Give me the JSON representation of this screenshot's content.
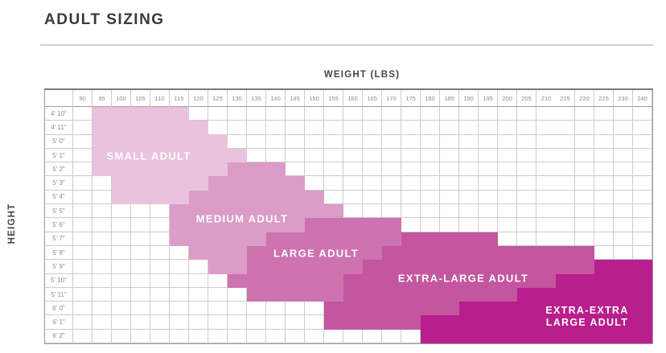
{
  "page_title": "ADULT SIZING",
  "axes": {
    "x_label": "WEIGHT (LBS)",
    "y_label": "HEIGHT"
  },
  "chart_data": {
    "type": "heatmap",
    "title": "ADULT SIZING",
    "xlabel": "WEIGHT (LBS)",
    "ylabel": "HEIGHT",
    "grid": true,
    "legend_position": "labels-inside-regions",
    "weights": [
      90,
      95,
      100,
      105,
      110,
      115,
      120,
      125,
      130,
      135,
      140,
      145,
      150,
      155,
      160,
      165,
      170,
      175,
      180,
      185,
      190,
      195,
      200,
      205,
      210,
      215,
      220,
      225,
      230,
      240
    ],
    "heights": [
      "4' 10\"",
      "4' 11\"",
      "5' 0\"",
      "5' 1\"",
      "5' 2\"",
      "5' 3\"",
      "5' 4\"",
      "5' 5\"",
      "5' 6\"",
      "5' 7\"",
      "5' 8\"",
      "5' 9\"",
      "5' 10\"",
      "5' 11\"",
      "6' 0\"",
      "6' 1\"",
      "6' 2\""
    ],
    "regions": [
      {
        "id": "small-adult",
        "label": "SMALL ADULT",
        "color": "#eac2dd",
        "spans": [
          [
            "4' 10\"",
            95,
            115
          ],
          [
            "4' 11\"",
            95,
            120
          ],
          [
            "5' 0\"",
            95,
            125
          ],
          [
            "5' 1\"",
            95,
            130
          ],
          [
            "5' 2\"",
            95,
            125
          ],
          [
            "5' 3\"",
            100,
            120
          ],
          [
            "5' 4\"",
            100,
            115
          ]
        ]
      },
      {
        "id": "medium-adult",
        "label": "MEDIUM ADULT",
        "color": "#db9cc7",
        "spans": [
          [
            "5' 2\"",
            130,
            140
          ],
          [
            "5' 3\"",
            125,
            145
          ],
          [
            "5' 4\"",
            120,
            150
          ],
          [
            "5' 5\"",
            115,
            155
          ],
          [
            "5' 6\"",
            115,
            145
          ],
          [
            "5' 7\"",
            115,
            135
          ],
          [
            "5' 8\"",
            120,
            130
          ],
          [
            "5' 9\"",
            125,
            130
          ]
        ]
      },
      {
        "id": "large-adult",
        "label": "LARGE ADULT",
        "color": "#cd73af",
        "spans": [
          [
            "5' 6\"",
            150,
            170
          ],
          [
            "5' 7\"",
            140,
            170
          ],
          [
            "5' 8\"",
            135,
            165
          ],
          [
            "5' 9\"",
            135,
            160
          ],
          [
            "5' 10\"",
            130,
            155
          ],
          [
            "5' 11\"",
            135,
            155
          ]
        ]
      },
      {
        "id": "extra-large-adult",
        "label": "EXTRA-LARGE ADULT",
        "color": "#c3569e",
        "spans": [
          [
            "5' 7\"",
            175,
            195
          ],
          [
            "5' 8\"",
            170,
            220
          ],
          [
            "5' 9\"",
            165,
            220
          ],
          [
            "5' 10\"",
            160,
            210
          ],
          [
            "5' 11\"",
            160,
            200
          ],
          [
            "6' 0\"",
            155,
            185
          ],
          [
            "6' 1\"",
            155,
            175
          ]
        ]
      },
      {
        "id": "extra-extra-large-adult",
        "label": "EXTRA-EXTRA LARGE ADULT",
        "label_lines": [
          "EXTRA-EXTRA",
          "LARGE ADULT"
        ],
        "color": "#b81e8c",
        "spans": [
          [
            "5' 9\"",
            225,
            240
          ],
          [
            "5' 10\"",
            215,
            240
          ],
          [
            "5' 11\"",
            205,
            240
          ],
          [
            "6' 0\"",
            190,
            240
          ],
          [
            "6' 1\"",
            180,
            240
          ],
          [
            "6' 2\"",
            180,
            240
          ]
        ]
      }
    ]
  }
}
